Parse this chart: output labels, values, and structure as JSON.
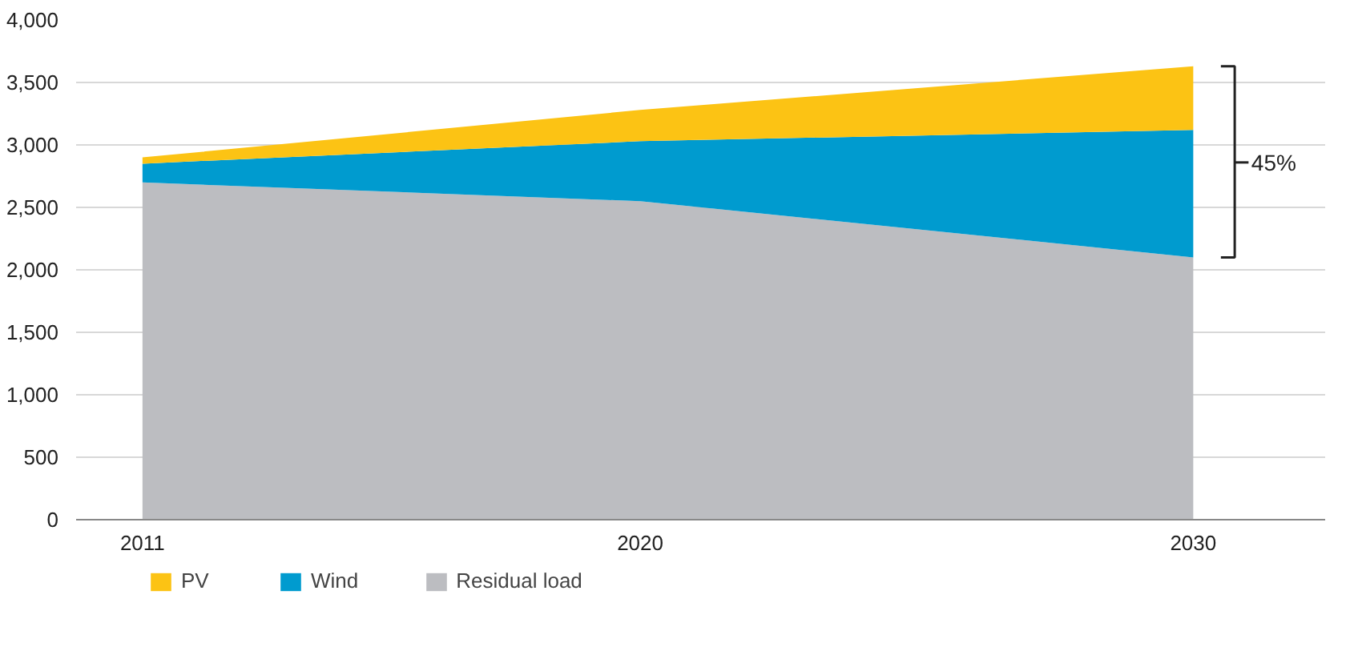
{
  "chart_data": {
    "type": "area",
    "stacked": true,
    "x": [
      2011,
      2020,
      2030
    ],
    "series": [
      {
        "name": "Residual load",
        "color": "#bcbdc1",
        "values": [
          2700,
          2550,
          2100
        ]
      },
      {
        "name": "Wind",
        "color": "#009bcf",
        "values": [
          150,
          480,
          1020
        ]
      },
      {
        "name": "PV",
        "color": "#fcc314",
        "values": [
          50,
          250,
          510
        ]
      }
    ],
    "xlim": [
      2009.8,
      2032.4
    ],
    "xticks": [
      2011,
      2020,
      2030
    ],
    "ylim": [
      0,
      4000
    ],
    "yticks": [
      0,
      500,
      {
        "value": 1000,
        "label": "1,000"
      },
      {
        "value": 1500,
        "label": "1,500"
      },
      {
        "value": 2000,
        "label": "2,000"
      },
      {
        "value": 2500,
        "label": "2,500"
      },
      {
        "value": 3000,
        "label": "3,000"
      },
      {
        "value": 3500,
        "label": "3,500"
      },
      {
        "value": 4000,
        "label": "4,000"
      }
    ],
    "grid": "y",
    "legend": "bottom",
    "annotations": [
      {
        "text": "45%",
        "x": 2030,
        "y": 2860
      }
    ]
  }
}
